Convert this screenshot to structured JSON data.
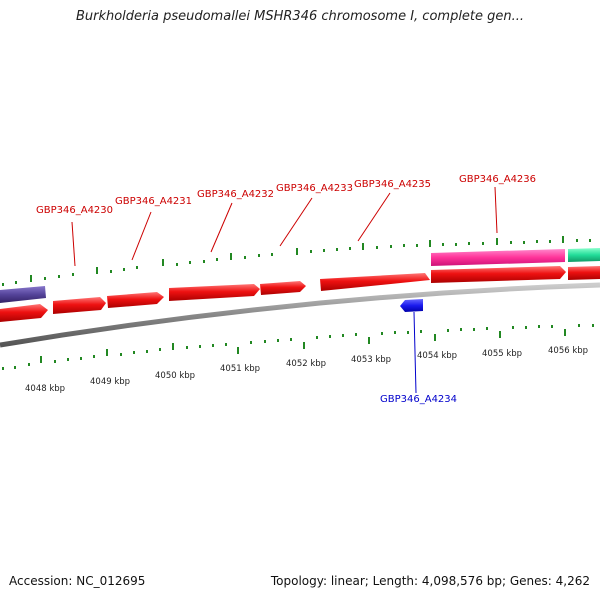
{
  "title": "Burkholderia pseudomallei MSHR346 chromosome I, complete gen...",
  "footer": {
    "accession": "Accession: NC_012695",
    "summary": "Topology: linear; Length: 4,098,576 bp; Genes: 4,262"
  },
  "colors": {
    "gene_forward": "#ee1111",
    "gene_reverse": "#1a1aee",
    "gene_pink": "#ff3399",
    "gene_teal": "#22dd99",
    "gene_purple": "#55449a",
    "backbone": "#888888",
    "ticks": "#228822",
    "label_forward": "#cc0000",
    "label_reverse": "#0000cc"
  },
  "upper_labels": [
    "GBP346_A4230",
    "GBP346_A4231",
    "GBP346_A4232",
    "GBP346_A4233",
    "GBP346_A4235",
    "GBP346_A4236"
  ],
  "lower_labels": [
    "GBP346_A4234"
  ],
  "scale_labels": [
    "4048 kbp",
    "4049 kbp",
    "4050 kbp",
    "4051 kbp",
    "4052 kbp",
    "4053 kbp",
    "4054 kbp",
    "4055 kbp",
    "4056 kbp"
  ]
}
